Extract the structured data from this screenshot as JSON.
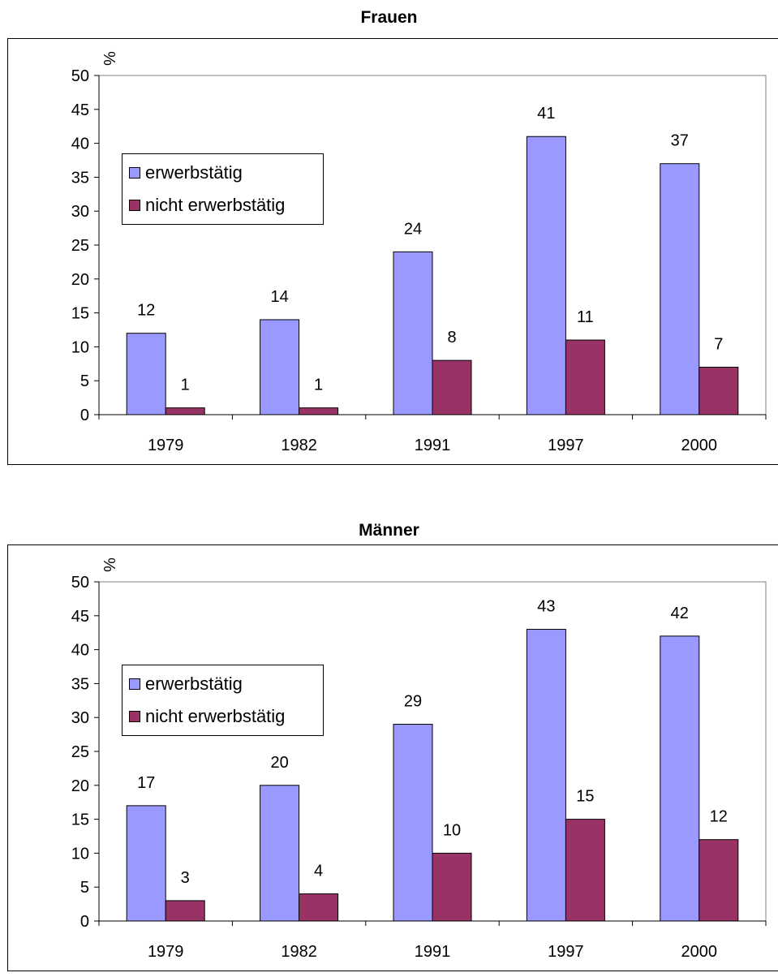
{
  "chart_data": [
    {
      "type": "bar",
      "title": "Frauen",
      "ylabel": "%",
      "ylim": [
        0,
        50
      ],
      "yticks": [
        0,
        5,
        10,
        15,
        20,
        25,
        30,
        35,
        40,
        45,
        50
      ],
      "categories": [
        "1979",
        "1982",
        "1991",
        "1997",
        "2000"
      ],
      "series": [
        {
          "name": "erwerbstätig",
          "values": [
            12,
            14,
            24,
            41,
            37
          ]
        },
        {
          "name": "nicht erwerbstätig",
          "values": [
            1,
            1,
            8,
            11,
            7
          ]
        }
      ],
      "grid": false,
      "legend": "left"
    },
    {
      "type": "bar",
      "title": "Männer",
      "ylabel": "%",
      "ylim": [
        0,
        50
      ],
      "yticks": [
        0,
        5,
        10,
        15,
        20,
        25,
        30,
        35,
        40,
        45,
        50
      ],
      "categories": [
        "1979",
        "1982",
        "1991",
        "1997",
        "2000"
      ],
      "series": [
        {
          "name": "erwerbstätig",
          "values": [
            17,
            20,
            29,
            43,
            42
          ]
        },
        {
          "name": "nicht erwerbstätig",
          "values": [
            3,
            4,
            10,
            15,
            12
          ]
        }
      ],
      "grid": false,
      "legend": "left"
    }
  ],
  "colors": {
    "erwerbstaetig": "#9999ff",
    "nicht_erwerbstaetig": "#993366",
    "plot_border": "#808080"
  }
}
